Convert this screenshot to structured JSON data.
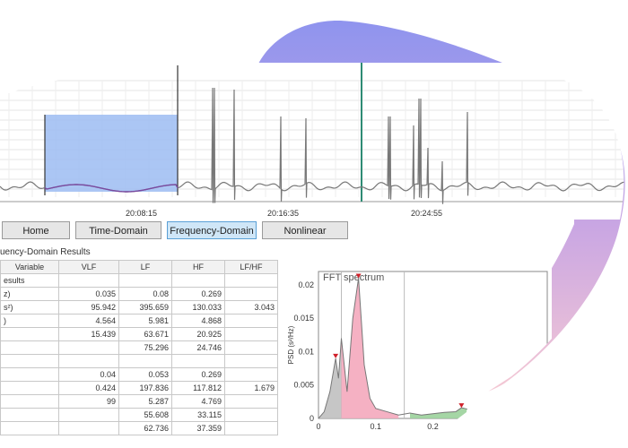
{
  "app": {
    "tabs": [
      {
        "label": "Home"
      },
      {
        "label": "Time-Domain"
      },
      {
        "label": "Frequency-Domain",
        "active": true
      },
      {
        "label": "Nonlinear"
      }
    ]
  },
  "ecg": {
    "time_ticks": [
      "20:08:15",
      "20:16:35",
      "20:24:55"
    ],
    "selection_color": "#9cbcf2",
    "marker_color": "#2e8b74"
  },
  "results": {
    "title": "uency-Domain Results",
    "headers": [
      "Variable",
      "VLF",
      "LF",
      "HF",
      "LF/HF"
    ],
    "rows": [
      [
        "esults",
        "",
        "",
        "",
        ""
      ],
      [
        "z)",
        "0.035",
        "0.08",
        "0.269",
        ""
      ],
      [
        "s²)",
        "95.942",
        "395.659",
        "130.033",
        "3.043"
      ],
      [
        ")",
        "4.564",
        "5.981",
        "4.868",
        ""
      ],
      [
        "",
        "15.439",
        "63.671",
        "20.925",
        ""
      ],
      [
        "",
        "",
        "75.296",
        "24.746",
        ""
      ],
      [
        "",
        "",
        "",
        "",
        ""
      ],
      [
        "",
        "0.04",
        "0.053",
        "0.269",
        ""
      ],
      [
        "",
        "0.424",
        "197.836",
        "117.812",
        "1.679"
      ],
      [
        "",
        "99",
        "5.287",
        "4.769",
        ""
      ],
      [
        "",
        "",
        "55.608",
        "33.115",
        ""
      ],
      [
        "",
        "",
        "62.736",
        "37.359",
        ""
      ]
    ]
  },
  "fft": {
    "title": "FFT spectrum",
    "ylabel": "PSD (s²/Hz)",
    "y_ticks": [
      "0.02",
      "0.015",
      "0.01",
      "0.005",
      "0"
    ],
    "x_ticks": [
      "0",
      "0.1",
      "0.2"
    ]
  },
  "colors": {
    "blob_top": "#8f94ee",
    "blob_bottom": "#f2c6d6",
    "selection": "#9cbcf2",
    "lf_fill": "#f4a9bd",
    "hf_fill": "#9bd19b"
  },
  "chart_data": {
    "type": "area",
    "title": "FFT spectrum",
    "ylabel": "PSD (s²/Hz)",
    "xlim": [
      0,
      0.4
    ],
    "ylim": [
      0,
      0.022
    ],
    "x": [
      0,
      0.01,
      0.02,
      0.03,
      0.035,
      0.04,
      0.05,
      0.06,
      0.07,
      0.08,
      0.09,
      0.1,
      0.12,
      0.14,
      0.16,
      0.18,
      0.2,
      0.22,
      0.24,
      0.25,
      0.26,
      0.27,
      0.28,
      0.29,
      0.3
    ],
    "series": [
      {
        "values": [
          0,
          0.001,
          0.004,
          0.009,
          0.006,
          0.012,
          0.004,
          0.015,
          0.021,
          0.008,
          0.003,
          0.0015,
          0.001,
          0.0005,
          0.0008,
          0.0005,
          0.0007,
          0.0009,
          0.001,
          0.0016,
          0.0014,
          0.0012,
          0.0018,
          0.0012,
          0.0005
        ]
      }
    ]
  }
}
